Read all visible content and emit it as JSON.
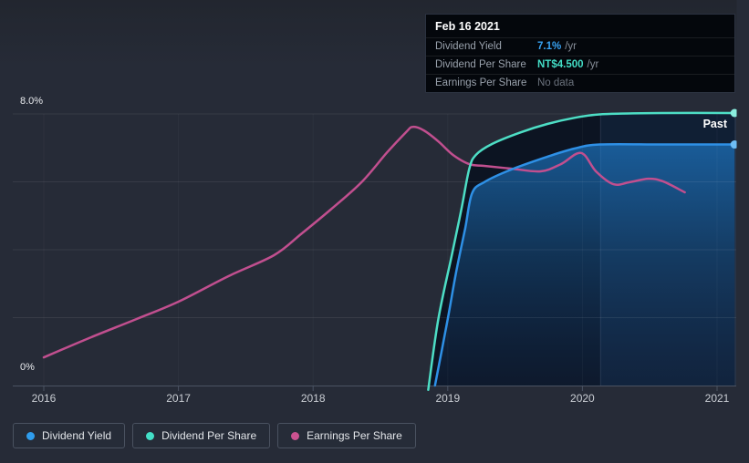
{
  "page": {
    "background": "#262b37"
  },
  "tooltip": {
    "date": "Feb 16 2021",
    "rows": [
      {
        "label": "Dividend Yield",
        "value": "7.1%",
        "unit": "/yr",
        "value_color": "#38a3f3"
      },
      {
        "label": "Dividend Per Share",
        "value": "NT$4.500",
        "unit": "/yr",
        "value_color": "#43ddc6"
      },
      {
        "label": "Earnings Per Share",
        "value": "No data",
        "unit": "",
        "value_color": "#6b727d"
      }
    ]
  },
  "chart": {
    "past_label": "Past",
    "y_axis": {
      "top_label": "8.0%",
      "bottom_label": "0%"
    },
    "x_ticks": [
      "2016",
      "2017",
      "2018",
      "2019",
      "2020",
      "2021"
    ]
  },
  "legend": [
    {
      "label": "Dividend Yield",
      "color": "#2f9ded"
    },
    {
      "label": "Dividend Per Share",
      "color": "#43dfc7"
    },
    {
      "label": "Earnings Per Share",
      "color": "#cb5290"
    }
  ],
  "chart_data": {
    "type": "line",
    "title": "Dividend history (past)",
    "x_range_years": [
      2015.77,
      2021.14
    ],
    "ylim_percent": [
      0,
      8
    ],
    "grid": true,
    "legend_position": "bottom-left",
    "past_highlight": {
      "from_year": 2020.135,
      "to_year": 2021.14
    },
    "tooltip_point": {
      "date": "Feb 16 2021",
      "dividend_yield_pct": 7.1,
      "dividend_per_share_nt": 4.5,
      "eps": null
    },
    "series": [
      {
        "name": "earnings_per_share",
        "label": "Earnings Per Share",
        "color": "#c14f8f",
        "scale": "pct",
        "unit": "axis-relative (no data labels shown)",
        "area": false,
        "end_dot": false,
        "points": [
          {
            "x": 2016.0,
            "y": 0.83
          },
          {
            "x": 2016.35,
            "y": 1.42
          },
          {
            "x": 2016.69,
            "y": 1.96
          },
          {
            "x": 2017.0,
            "y": 2.47
          },
          {
            "x": 2017.37,
            "y": 3.22
          },
          {
            "x": 2017.71,
            "y": 3.84
          },
          {
            "x": 2017.91,
            "y": 4.46
          },
          {
            "x": 2018.13,
            "y": 5.18
          },
          {
            "x": 2018.36,
            "y": 5.99
          },
          {
            "x": 2018.55,
            "y": 6.87
          },
          {
            "x": 2018.69,
            "y": 7.46
          },
          {
            "x": 2018.74,
            "y": 7.62
          },
          {
            "x": 2018.82,
            "y": 7.52
          },
          {
            "x": 2018.93,
            "y": 7.19
          },
          {
            "x": 2019.04,
            "y": 6.79
          },
          {
            "x": 2019.16,
            "y": 6.52
          },
          {
            "x": 2019.27,
            "y": 6.47
          },
          {
            "x": 2019.47,
            "y": 6.39
          },
          {
            "x": 2019.69,
            "y": 6.31
          },
          {
            "x": 2019.84,
            "y": 6.52
          },
          {
            "x": 2019.99,
            "y": 6.85
          },
          {
            "x": 2020.1,
            "y": 6.31
          },
          {
            "x": 2020.23,
            "y": 5.93
          },
          {
            "x": 2020.35,
            "y": 5.99
          },
          {
            "x": 2020.49,
            "y": 6.09
          },
          {
            "x": 2020.6,
            "y": 6.01
          },
          {
            "x": 2020.76,
            "y": 5.69
          }
        ]
      },
      {
        "name": "dividend_per_share",
        "label": "Dividend Per Share",
        "color": "#4ddec5",
        "dot_color": "#8beede",
        "scale": "nt",
        "unit": "NT$",
        "area": true,
        "area_fill": "rgba(10,18,33,0.92)",
        "end_dot": true,
        "points": [
          {
            "x": 2018.855,
            "y": -0.07
          },
          {
            "x": 2018.93,
            "y": 1.1
          },
          {
            "x": 2019.03,
            "y": 2.15
          },
          {
            "x": 2019.1,
            "y": 2.9
          },
          {
            "x": 2019.16,
            "y": 3.58
          },
          {
            "x": 2019.21,
            "y": 3.81
          },
          {
            "x": 2019.33,
            "y": 3.99
          },
          {
            "x": 2019.54,
            "y": 4.18
          },
          {
            "x": 2019.74,
            "y": 4.32
          },
          {
            "x": 2019.94,
            "y": 4.42
          },
          {
            "x": 2020.15,
            "y": 4.48
          },
          {
            "x": 2020.6,
            "y": 4.5
          },
          {
            "x": 2021.13,
            "y": 4.5
          }
        ]
      },
      {
        "name": "dividend_yield",
        "label": "Dividend Yield",
        "color": "#2e90e6",
        "dot_color": "#6fbdf4",
        "scale": "pct",
        "unit": "%",
        "area": true,
        "area_fill": "gradient-blue",
        "end_dot": true,
        "points": [
          {
            "x": 2018.905,
            "y": 0.0
          },
          {
            "x": 2019.0,
            "y": 1.96
          },
          {
            "x": 2019.06,
            "y": 3.3
          },
          {
            "x": 2019.13,
            "y": 4.64
          },
          {
            "x": 2019.18,
            "y": 5.66
          },
          {
            "x": 2019.27,
            "y": 5.99
          },
          {
            "x": 2019.47,
            "y": 6.36
          },
          {
            "x": 2019.74,
            "y": 6.74
          },
          {
            "x": 2019.94,
            "y": 6.98
          },
          {
            "x": 2020.13,
            "y": 7.1
          },
          {
            "x": 2020.6,
            "y": 7.1
          },
          {
            "x": 2021.13,
            "y": 7.1
          }
        ]
      }
    ]
  }
}
